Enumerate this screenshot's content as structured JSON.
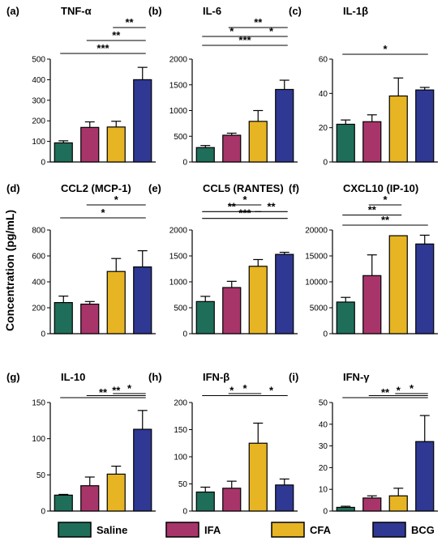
{
  "figure": {
    "ylabel": "Concentration (pg/mL)",
    "group_colors": {
      "Saline": "#1e6e5a",
      "IFA": "#a8356a",
      "CFA": "#e7b523",
      "BCG": "#2f3893"
    },
    "legend": [
      "Saline",
      "IFA",
      "CFA",
      "BCG"
    ]
  },
  "chart_data": [
    {
      "type": "bar",
      "letter": "(a)",
      "title": "TNF-α",
      "categories": [
        "Saline",
        "IFA",
        "CFA",
        "BCG"
      ],
      "values": [
        93,
        168,
        170,
        400
      ],
      "errors": [
        10,
        27,
        28,
        60
      ],
      "ylim": [
        0,
        500
      ],
      "yticks": [
        "0",
        "100",
        "200",
        "300",
        "400",
        "500"
      ],
      "significance": [
        {
          "from": 0,
          "to": 3,
          "label": "***"
        },
        {
          "from": 1,
          "to": 3,
          "label": "**"
        },
        {
          "from": 2,
          "to": 3,
          "label": "**"
        }
      ]
    },
    {
      "type": "bar",
      "letter": "(b)",
      "title": "IL-6",
      "categories": [
        "Saline",
        "IFA",
        "CFA",
        "BCG"
      ],
      "values": [
        280,
        520,
        790,
        1410
      ],
      "errors": [
        40,
        40,
        210,
        180
      ],
      "ylim": [
        0,
        2000
      ],
      "yticks": [
        "0",
        "500",
        "1000",
        "1500",
        "2000"
      ],
      "significance": [
        {
          "from": 0,
          "to": 3,
          "label": "***"
        },
        {
          "from": 0,
          "to": 2,
          "label": "*"
        },
        {
          "from": 2,
          "to": 3,
          "label": "*"
        },
        {
          "from": 1,
          "to": 3,
          "label": "**"
        }
      ]
    },
    {
      "type": "bar",
      "letter": "(c)",
      "title": "IL-1β",
      "categories": [
        "Saline",
        "IFA",
        "CFA",
        "BCG"
      ],
      "values": [
        22,
        23.5,
        38.5,
        42
      ],
      "errors": [
        2.5,
        4,
        10.5,
        1.5
      ],
      "ylim": [
        0,
        60
      ],
      "yticks": [
        "0",
        "20",
        "40",
        "60"
      ],
      "significance": [
        {
          "from": 0,
          "to": 3,
          "label": "*"
        }
      ]
    },
    {
      "type": "bar",
      "letter": "(d)",
      "title": "CCL2 (MCP-1)",
      "categories": [
        "Saline",
        "IFA",
        "CFA",
        "BCG"
      ],
      "values": [
        240,
        228,
        480,
        515
      ],
      "errors": [
        50,
        20,
        100,
        125
      ],
      "ylim": [
        0,
        800
      ],
      "yticks": [
        "0",
        "200",
        "400",
        "600",
        "800"
      ],
      "significance": [
        {
          "from": 0,
          "to": 3,
          "label": "*"
        },
        {
          "from": 1,
          "to": 3,
          "label": "*"
        }
      ]
    },
    {
      "type": "bar",
      "letter": "(e)",
      "title": "CCL5 (RANTES)",
      "categories": [
        "Saline",
        "IFA",
        "CFA",
        "BCG"
      ],
      "values": [
        620,
        890,
        1300,
        1530
      ],
      "errors": [
        100,
        120,
        130,
        40
      ],
      "ylim": [
        0,
        2000
      ],
      "yticks": [
        "0",
        "500",
        "1000",
        "1500",
        "2000"
      ],
      "significance": [
        {
          "from": 0,
          "to": 3,
          "label": "***"
        },
        {
          "from": 0,
          "to": 2,
          "label": "**"
        },
        {
          "from": 2,
          "to": 3,
          "label": "**"
        },
        {
          "from": 1,
          "to": 2,
          "label": "*"
        }
      ]
    },
    {
      "type": "bar",
      "letter": "(f)",
      "title": "CXCL10 (IP-10)",
      "categories": [
        "Saline",
        "IFA",
        "CFA",
        "BCG"
      ],
      "values": [
        6100,
        11200,
        18900,
        17300
      ],
      "errors": [
        900,
        4000,
        0,
        1700
      ],
      "ylim": [
        0,
        20000
      ],
      "yticks": [
        "0",
        "5000",
        "10000",
        "15000",
        "20000"
      ],
      "significance": [
        {
          "from": 0,
          "to": 3,
          "label": "**"
        },
        {
          "from": 0,
          "to": 2,
          "label": "**"
        },
        {
          "from": 1,
          "to": 2,
          "label": "*"
        }
      ]
    },
    {
      "type": "bar",
      "letter": "(g)",
      "title": "IL-10",
      "categories": [
        "Saline",
        "IFA",
        "CFA",
        "BCG"
      ],
      "values": [
        22,
        35,
        51,
        113
      ],
      "errors": [
        1,
        12,
        11,
        26
      ],
      "ylim": [
        0,
        150
      ],
      "yticks": [
        "0",
        "50",
        "100",
        "150"
      ],
      "significance": [
        {
          "from": 0,
          "to": 3,
          "label": "**"
        },
        {
          "from": 1,
          "to": 3,
          "label": "**"
        },
        {
          "from": 2,
          "to": 3,
          "label": "*"
        }
      ]
    },
    {
      "type": "bar",
      "letter": "(h)",
      "title": "IFN-β",
      "categories": [
        "Saline",
        "IFA",
        "CFA",
        "BCG"
      ],
      "values": [
        35,
        42,
        125,
        48
      ],
      "errors": [
        9,
        13,
        37,
        11
      ],
      "ylim": [
        0,
        200
      ],
      "yticks": [
        "0",
        "50",
        "100",
        "150",
        "200"
      ],
      "significance": [
        {
          "from": 0,
          "to": 2,
          "label": "*"
        },
        {
          "from": 1,
          "to": 2,
          "label": "*"
        },
        {
          "from": 2,
          "to": 3,
          "label": "*"
        }
      ]
    },
    {
      "type": "bar",
      "letter": "(i)",
      "title": "IFN-γ",
      "categories": [
        "Saline",
        "IFA",
        "CFA",
        "BCG"
      ],
      "values": [
        1.7,
        6,
        7,
        32
      ],
      "errors": [
        0.5,
        1,
        3.5,
        12
      ],
      "ylim": [
        0,
        50
      ],
      "yticks": [
        "0",
        "10",
        "20",
        "30",
        "40",
        "50"
      ],
      "significance": [
        {
          "from": 0,
          "to": 3,
          "label": "**"
        },
        {
          "from": 1,
          "to": 3,
          "label": "*"
        },
        {
          "from": 2,
          "to": 3,
          "label": "*"
        }
      ]
    }
  ]
}
